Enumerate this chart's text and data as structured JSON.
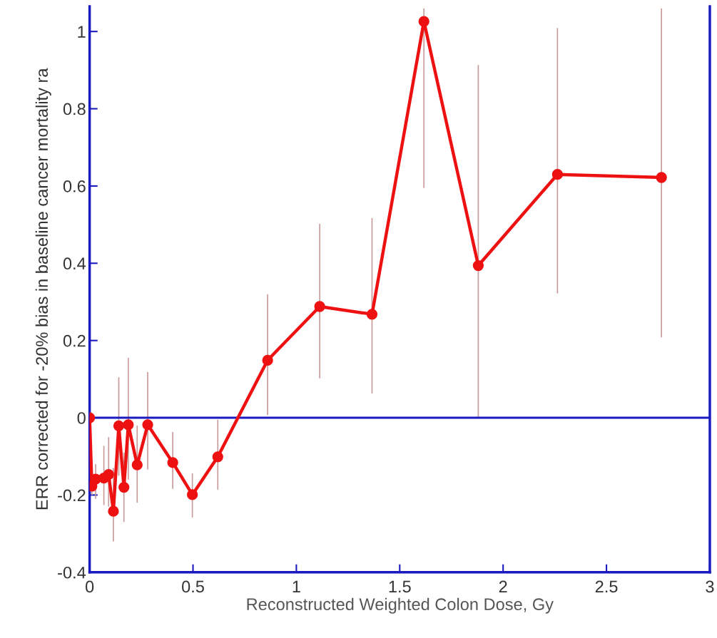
{
  "chart_data": {
    "type": "line",
    "xlabel": "Reconstructed Weighted Colon Dose, Gy",
    "ylabel": "ERR corrected for -20% bias in baseline cancer mortality ra",
    "x": [
      0,
      0.011,
      0.029,
      0.069,
      0.092,
      0.115,
      0.141,
      0.166,
      0.187,
      0.23,
      0.281,
      0.402,
      0.497,
      0.62,
      0.861,
      1.113,
      1.366,
      1.617,
      1.88,
      2.263,
      2.766
    ],
    "series": [
      {
        "color": "#ee1111",
        "values": [
          0,
          -0.177,
          -0.159,
          -0.156,
          -0.147,
          -0.242,
          -0.021,
          -0.18,
          -0.018,
          -0.122,
          -0.018,
          -0.116,
          -0.199,
          -0.101,
          0.149,
          0.288,
          0.268,
          1.026,
          0.394,
          0.63,
          0.622
        ],
        "errors": [
          null,
          [
            -0.2,
            -0.11
          ],
          [
            -0.21,
            -0.12
          ],
          [
            -0.226,
            -0.073
          ],
          [
            -0.23,
            -0.05
          ],
          [
            -0.32,
            -0.13
          ],
          [
            -0.15,
            0.105
          ],
          [
            -0.27,
            -0.09
          ],
          [
            -0.16,
            0.155
          ],
          [
            -0.22,
            -0.02
          ],
          [
            -0.134,
            0.118
          ],
          [
            -0.184,
            -0.037
          ],
          [
            -0.258,
            -0.144
          ],
          [
            -0.186,
            -0.005
          ],
          [
            0.007,
            0.32
          ],
          [
            0.102,
            0.502
          ],
          [
            0.063,
            0.517
          ],
          [
            0.595,
            1.06
          ],
          [
            0.002,
            0.913
          ],
          [
            0.322,
            1.009
          ],
          [
            0.208,
            1.06
          ]
        ]
      }
    ],
    "marker": "circle",
    "line_style": "solid",
    "xlim": [
      0,
      3
    ],
    "xticks": [
      0,
      0.5,
      1,
      1.5,
      2,
      2.5,
      3
    ],
    "ylim": [
      -0.4,
      1.065
    ],
    "yticks": [
      -0.4,
      -0.2,
      0,
      0.2,
      0.4,
      0.6,
      0.8,
      1
    ],
    "ref_lines": [
      {
        "axis": "y",
        "value": 0,
        "color": "#1a1ac0"
      }
    ],
    "grid": false,
    "legend": false
  }
}
